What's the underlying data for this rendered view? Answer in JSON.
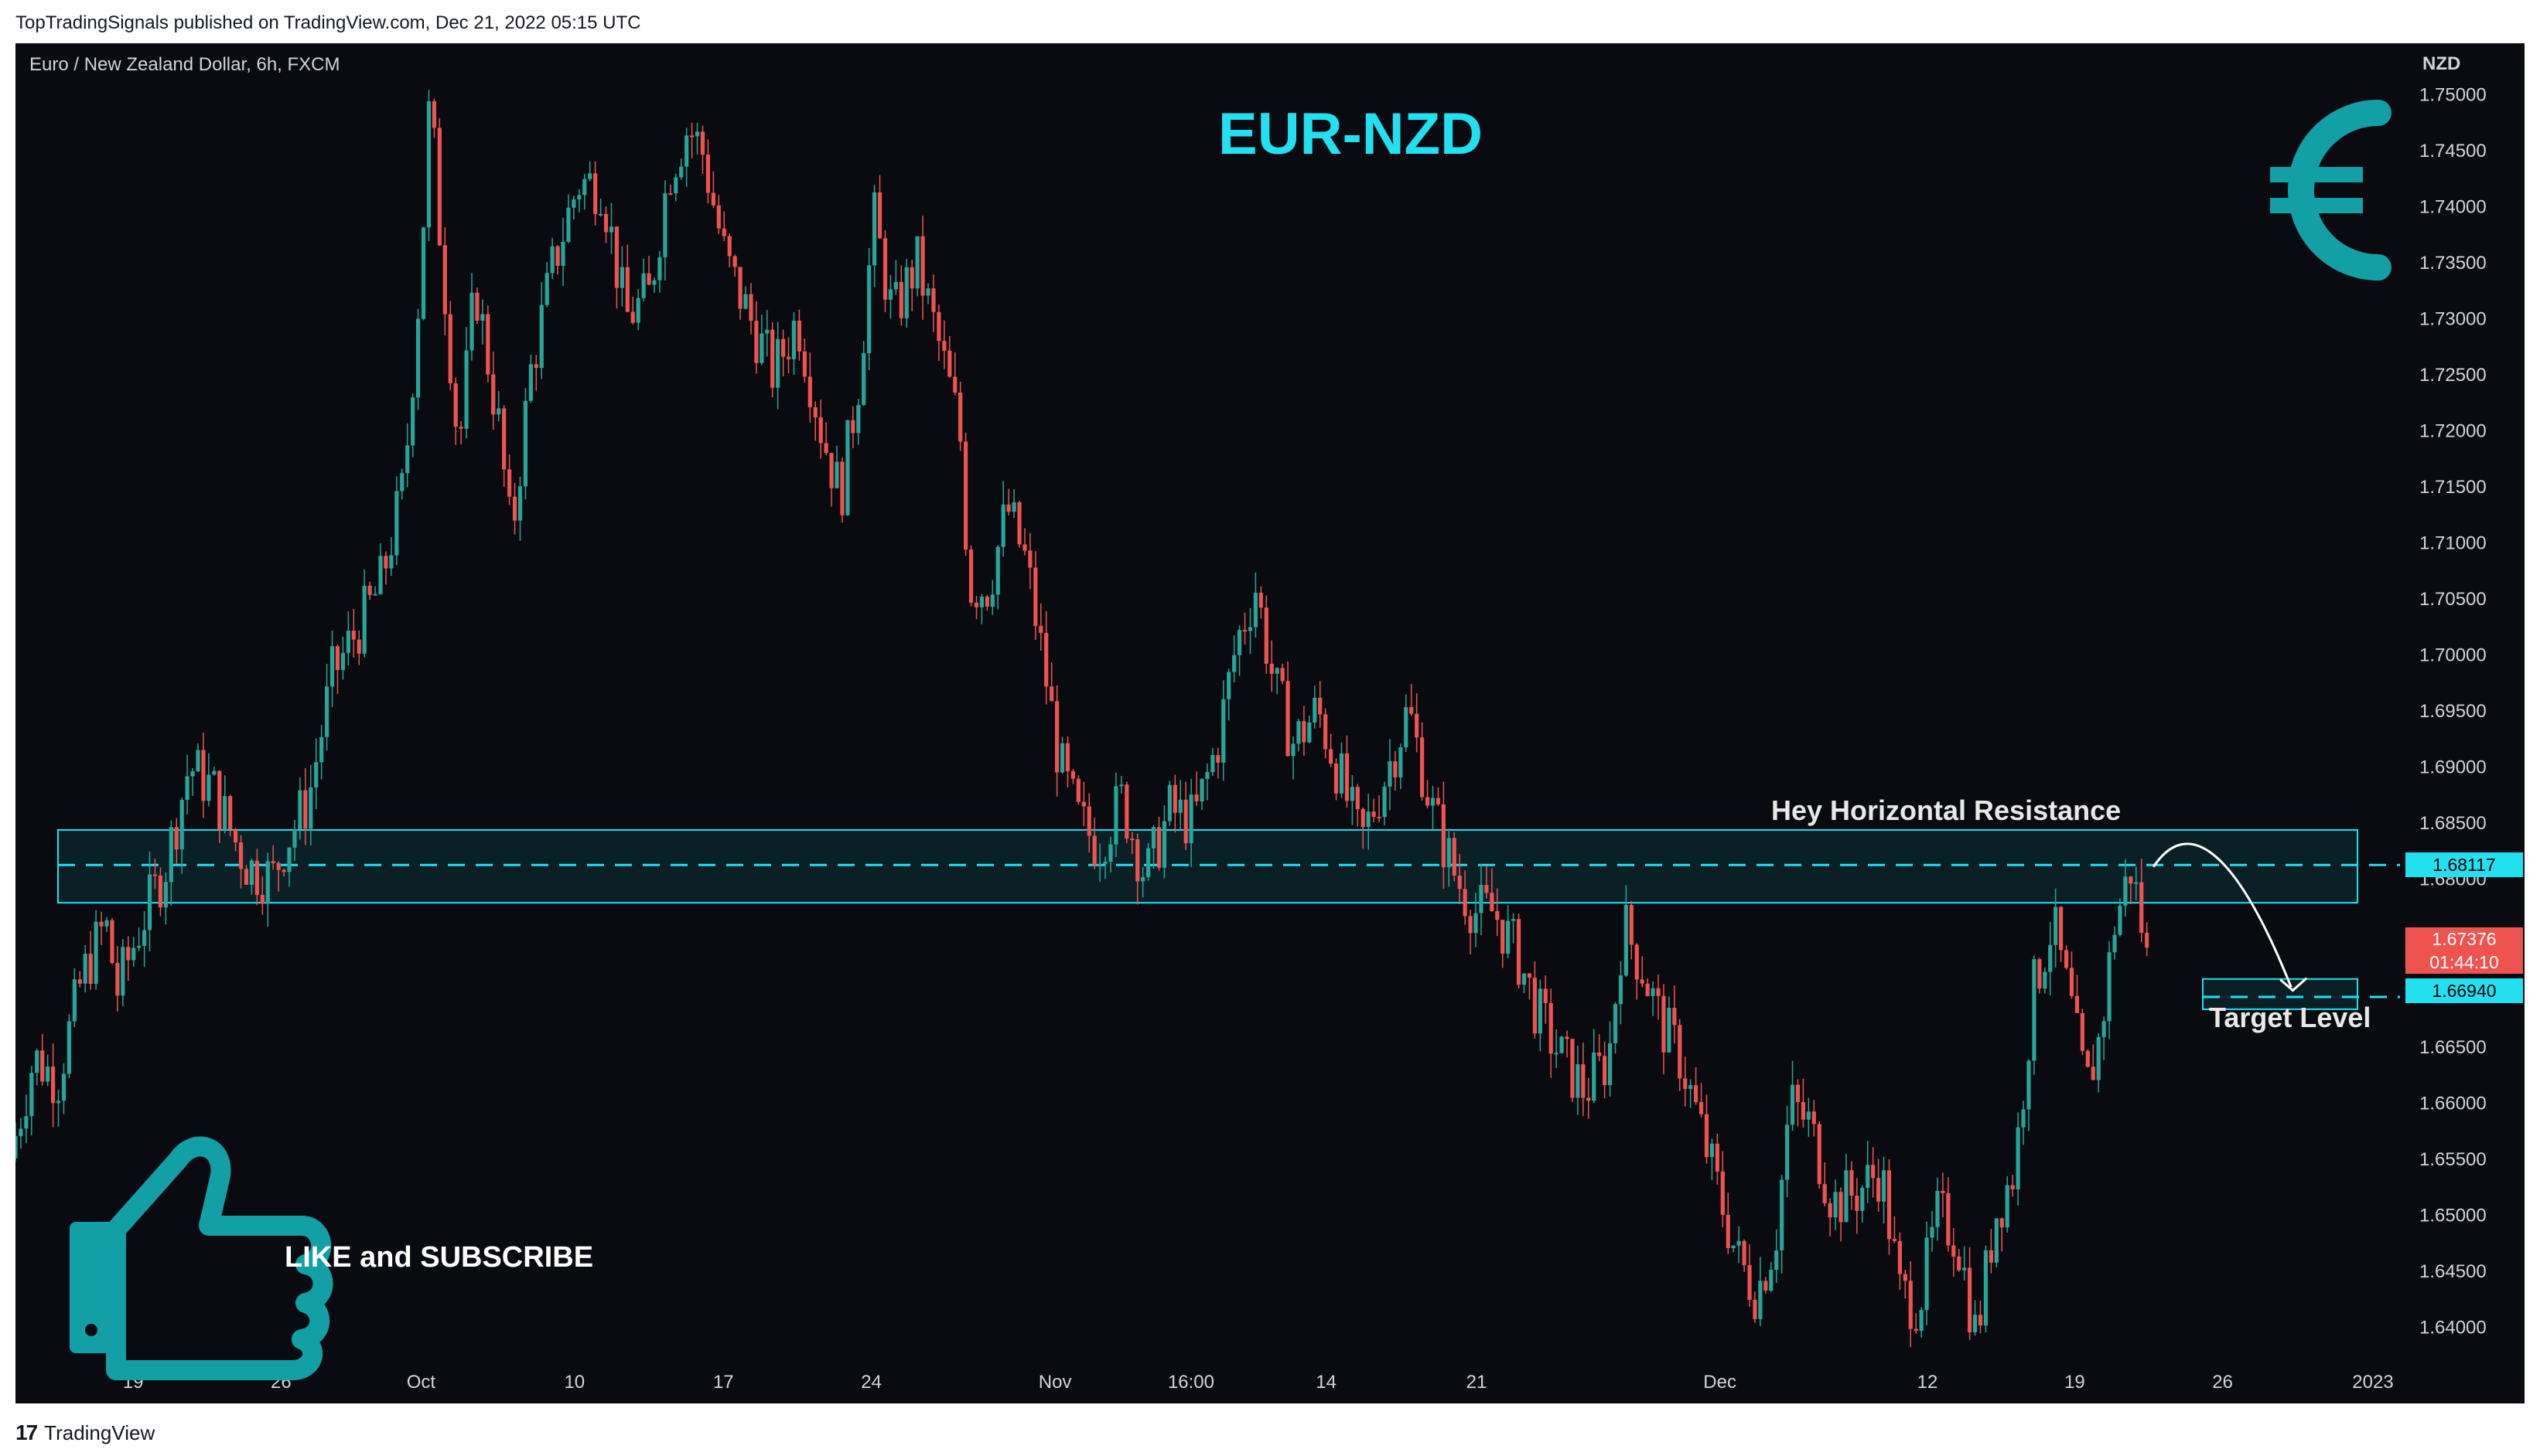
{
  "header": {
    "published_text": "TopTradingSignals published on TradingView.com, Dec 21, 2022 05:15 UTC"
  },
  "footer": {
    "brand": "TradingView",
    "logo_glyph": "17"
  },
  "chart_data": {
    "type": "candlestick",
    "symbol_label": "Euro / New Zealand Dollar, 6h, FXCM",
    "title": "EUR-NZD",
    "currency_label": "NZD",
    "y_ticks": [
      "1.75000",
      "1.74500",
      "1.74000",
      "1.73500",
      "1.73000",
      "1.72500",
      "1.72000",
      "1.71500",
      "1.71000",
      "1.70500",
      "1.70000",
      "1.69500",
      "1.69000",
      "1.68500",
      "1.68000",
      "1.67500",
      "1.67000",
      "1.66500",
      "1.66000",
      "1.65500",
      "1.65000",
      "1.64500",
      "1.64000"
    ],
    "ylim": [
      1.6345,
      1.7545
    ],
    "x_ticks": [
      {
        "label": "19",
        "x": 0.0493
      },
      {
        "label": "26",
        "x": 0.1113
      },
      {
        "label": "Oct",
        "x": 0.17
      },
      {
        "label": "10",
        "x": 0.2343
      },
      {
        "label": "17",
        "x": 0.2967
      },
      {
        "label": "24",
        "x": 0.3587
      },
      {
        "label": "Nov",
        "x": 0.4357
      },
      {
        "label": "16:00",
        "x": 0.4927
      },
      {
        "label": "14",
        "x": 0.5493
      },
      {
        "label": "21",
        "x": 0.6123
      },
      {
        "label": "Dec",
        "x": 0.7143
      },
      {
        "label": "12",
        "x": 0.8013
      },
      {
        "label": "19",
        "x": 0.863
      },
      {
        "label": "26",
        "x": 0.925
      },
      {
        "label": "2023",
        "x": 0.988
      }
    ],
    "resistance_zone": {
      "low": 1.6778,
      "high": 1.6843,
      "level": 1.68117,
      "label": "Hey Horizontal Resistance"
    },
    "target_zone": {
      "low": 1.6683,
      "high": 1.671,
      "level": 1.6694,
      "label": "Target Level"
    },
    "current_price": {
      "value": "1.67376",
      "countdown": "01:44:10"
    },
    "price_labels": {
      "resistance": "1.68117",
      "target": "1.66940"
    },
    "price_path": [
      [
        0.0,
        1.655
      ],
      [
        0.01,
        1.664
      ],
      [
        0.02,
        1.662
      ],
      [
        0.03,
        1.671
      ],
      [
        0.04,
        1.676
      ],
      [
        0.045,
        1.67
      ],
      [
        0.055,
        1.676
      ],
      [
        0.065,
        1.681
      ],
      [
        0.075,
        1.69
      ],
      [
        0.085,
        1.688
      ],
      [
        0.095,
        1.683
      ],
      [
        0.1,
        1.681
      ],
      [
        0.11,
        1.68
      ],
      [
        0.115,
        1.683
      ],
      [
        0.125,
        1.687
      ],
      [
        0.135,
        1.698
      ],
      [
        0.145,
        1.702
      ],
      [
        0.155,
        1.706
      ],
      [
        0.165,
        1.715
      ],
      [
        0.172,
        1.734
      ],
      [
        0.176,
        1.75
      ],
      [
        0.18,
        1.738
      ],
      [
        0.188,
        1.718
      ],
      [
        0.195,
        1.733
      ],
      [
        0.205,
        1.72
      ],
      [
        0.21,
        1.71
      ],
      [
        0.218,
        1.725
      ],
      [
        0.228,
        1.735
      ],
      [
        0.238,
        1.742
      ],
      [
        0.248,
        1.742
      ],
      [
        0.258,
        1.73
      ],
      [
        0.268,
        1.732
      ],
      [
        0.276,
        1.743
      ],
      [
        0.284,
        1.747
      ],
      [
        0.29,
        1.745
      ],
      [
        0.3,
        1.735
      ],
      [
        0.31,
        1.73
      ],
      [
        0.32,
        1.725
      ],
      [
        0.33,
        1.73
      ],
      [
        0.34,
        1.72
      ],
      [
        0.348,
        1.714
      ],
      [
        0.356,
        1.725
      ],
      [
        0.362,
        1.739
      ],
      [
        0.37,
        1.73
      ],
      [
        0.38,
        1.735
      ],
      [
        0.39,
        1.727
      ],
      [
        0.398,
        1.72
      ],
      [
        0.402,
        1.706
      ],
      [
        0.41,
        1.706
      ],
      [
        0.418,
        1.713
      ],
      [
        0.426,
        1.708
      ],
      [
        0.434,
        1.698
      ],
      [
        0.44,
        1.69
      ],
      [
        0.448,
        1.685
      ],
      [
        0.456,
        1.683
      ],
      [
        0.466,
        1.687
      ],
      [
        0.476,
        1.68
      ],
      [
        0.486,
        1.686
      ],
      [
        0.496,
        1.685
      ],
      [
        0.506,
        1.692
      ],
      [
        0.514,
        1.701
      ],
      [
        0.522,
        1.706
      ],
      [
        0.53,
        1.697
      ],
      [
        0.538,
        1.692
      ],
      [
        0.548,
        1.695
      ],
      [
        0.556,
        1.69
      ],
      [
        0.566,
        1.683
      ],
      [
        0.576,
        1.689
      ],
      [
        0.586,
        1.695
      ],
      [
        0.596,
        1.686
      ],
      [
        0.606,
        1.68
      ],
      [
        0.614,
        1.677
      ],
      [
        0.622,
        1.677
      ],
      [
        0.632,
        1.673
      ],
      [
        0.64,
        1.668
      ],
      [
        0.65,
        1.664
      ],
      [
        0.66,
        1.661
      ],
      [
        0.67,
        1.664
      ],
      [
        0.676,
        1.676
      ],
      [
        0.684,
        1.672
      ],
      [
        0.692,
        1.667
      ],
      [
        0.7,
        1.664
      ],
      [
        0.708,
        1.658
      ],
      [
        0.716,
        1.652
      ],
      [
        0.724,
        1.646
      ],
      [
        0.732,
        1.643
      ],
      [
        0.74,
        1.648
      ],
      [
        0.746,
        1.66
      ],
      [
        0.754,
        1.658
      ],
      [
        0.764,
        1.651
      ],
      [
        0.774,
        1.652
      ],
      [
        0.784,
        1.654
      ],
      [
        0.792,
        1.643
      ],
      [
        0.8,
        1.642
      ],
      [
        0.808,
        1.65
      ],
      [
        0.816,
        1.648
      ],
      [
        0.824,
        1.639
      ],
      [
        0.832,
        1.65
      ],
      [
        0.84,
        1.654
      ],
      [
        0.848,
        1.67
      ],
      [
        0.856,
        1.676
      ],
      [
        0.864,
        1.668
      ],
      [
        0.87,
        1.661
      ],
      [
        0.876,
        1.666
      ],
      [
        0.882,
        1.676
      ],
      [
        0.889,
        1.681
      ],
      [
        0.895,
        1.6738
      ]
    ],
    "forecast_arrow": {
      "from": [
        0.896,
        1.681
      ],
      "to": [
        0.957,
        1.6697
      ]
    }
  },
  "overlay": {
    "cta_text": "LIKE and SUBSCRIBE",
    "icons": [
      "euro-icon",
      "thumbs-up-icon"
    ],
    "accent_color": "#22e0f0",
    "teal_color": "#129fa5",
    "up_color": "#26a69a",
    "down_color": "#ef5350"
  }
}
